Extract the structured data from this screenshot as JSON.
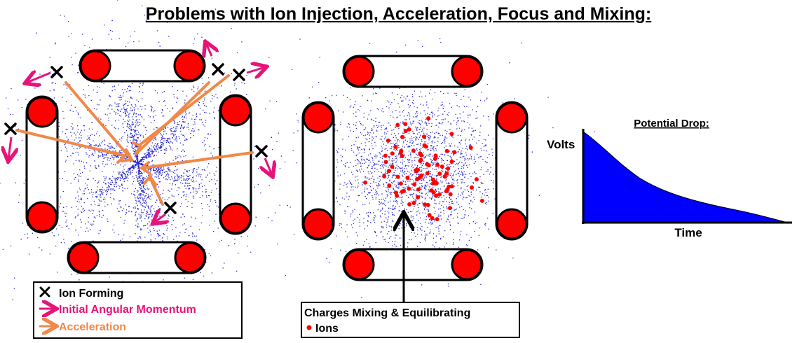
{
  "title": "Problems with Ion Injection, Acceleration, Focus and Mixing:",
  "legend_left": {
    "items": [
      {
        "label": "Ion Forming",
        "color": "#000000"
      },
      {
        "label": "Initial Angular Momentum",
        "color": "#e8127a"
      },
      {
        "label": "Acceleration",
        "color": "#f0884a"
      }
    ]
  },
  "legend_middle": {
    "heading": "Charges Mixing & Equilibrating",
    "items": [
      {
        "label": "Ions",
        "color": "#ff0000"
      }
    ]
  },
  "potential_plot": {
    "title": "Potential Drop:",
    "ylabel": "Volts",
    "xlabel": "Time",
    "fill_color": "#0000ff"
  },
  "colors": {
    "coil_fill": "#ff0000",
    "particle": "#2a2ad4",
    "momentum": "#e8127a",
    "acceleration": "#f0884a"
  }
}
